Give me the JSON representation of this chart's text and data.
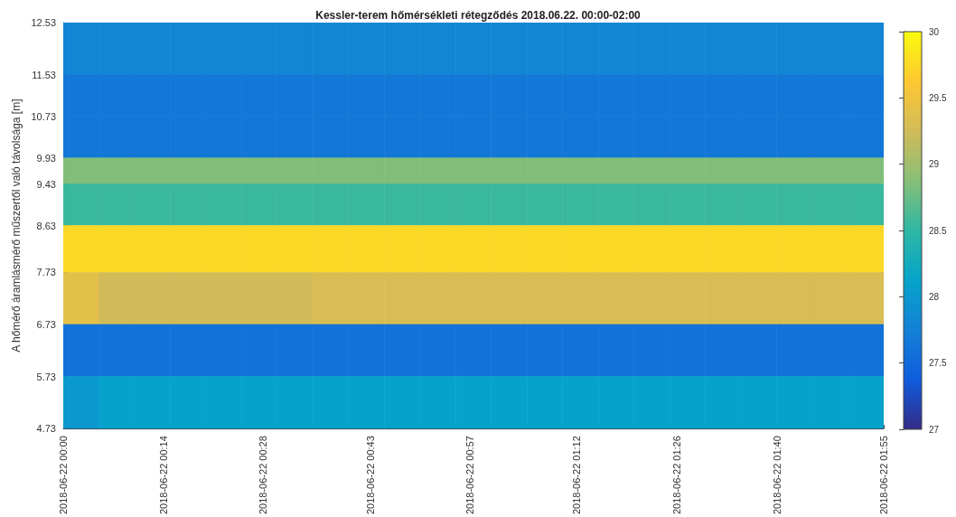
{
  "chart_data": {
    "type": "heatmap",
    "title": "Kessler-terem hőmérsékleti rétegződés 2018.06.22. 00:00-02:00",
    "ylabel": "A hőmérő áramlásmérő műszertől való távolsága [m]",
    "x": [
      "2018-06-22T00:02:30",
      "2018-06-22T00:07:30",
      "2018-06-22T00:12:30",
      "2018-06-22T00:17:30",
      "2018-06-22T00:22:30",
      "2018-06-22T00:27:30",
      "2018-06-22T00:32:30",
      "2018-06-22T00:37:30",
      "2018-06-22T00:42:30",
      "2018-06-22T00:47:30",
      "2018-06-22T00:52:30",
      "2018-06-22T00:57:30",
      "2018-06-22T01:02:30",
      "2018-06-22T01:07:30",
      "2018-06-22T01:12:30",
      "2018-06-22T01:17:30",
      "2018-06-22T01:22:30",
      "2018-06-22T01:27:30",
      "2018-06-22T01:32:30",
      "2018-06-22T01:37:30",
      "2018-06-22T01:42:30",
      "2018-06-22T01:47:30",
      "2018-06-22T01:52:30"
    ],
    "xlim": [
      "2018-06-22T00:00",
      "2018-06-22T01:55"
    ],
    "xticks": [
      {
        "value": "2018-06-22T00:00",
        "label": "2018-06-22 00:00"
      },
      {
        "value": "2018-06-22T00:14",
        "label": "2018-06-22 00:14"
      },
      {
        "value": "2018-06-22T00:28",
        "label": "2018-06-22 00:28"
      },
      {
        "value": "2018-06-22T00:43",
        "label": "2018-06-22 00:43"
      },
      {
        "value": "2018-06-22T00:57",
        "label": "2018-06-22 00:57"
      },
      {
        "value": "2018-06-22T01:12",
        "label": "2018-06-22 01:12"
      },
      {
        "value": "2018-06-22T01:26",
        "label": "2018-06-22 01:26"
      },
      {
        "value": "2018-06-22T01:40",
        "label": "2018-06-22 01:40"
      },
      {
        "value": "2018-06-22T01:55",
        "label": "2018-06-22 01:55"
      }
    ],
    "ylim": [
      4.73,
      12.53
    ],
    "yticks": [
      4.73,
      5.73,
      6.73,
      7.73,
      8.63,
      9.43,
      9.93,
      10.73,
      11.53,
      12.53
    ],
    "cells": [
      [
        27.8,
        27.8,
        27.8,
        27.8,
        27.8,
        27.8,
        27.8,
        27.8,
        27.8,
        27.8,
        27.8,
        27.8,
        27.8,
        27.8,
        27.8,
        27.8,
        27.8,
        27.8,
        27.8,
        27.8,
        27.8,
        27.8,
        27.8
      ],
      [
        27.65,
        27.65,
        27.65,
        27.65,
        27.65,
        27.65,
        27.65,
        27.65,
        27.65,
        27.65,
        27.65,
        27.65,
        27.65,
        27.65,
        27.65,
        27.65,
        27.65,
        27.65,
        27.65,
        27.65,
        27.65,
        27.65,
        27.65
      ],
      [
        27.65,
        27.65,
        27.65,
        27.65,
        27.65,
        27.65,
        27.65,
        27.65,
        27.65,
        27.65,
        27.65,
        27.65,
        27.65,
        27.65,
        27.65,
        27.65,
        27.65,
        27.65,
        27.65,
        27.65,
        27.65,
        27.65,
        27.65
      ],
      [
        28.85,
        28.85,
        28.85,
        28.85,
        28.85,
        28.85,
        28.85,
        28.85,
        28.85,
        28.85,
        28.85,
        28.85,
        28.85,
        28.85,
        28.85,
        28.85,
        28.85,
        28.85,
        28.85,
        28.85,
        28.85,
        28.85,
        28.85
      ],
      [
        28.55,
        28.55,
        28.55,
        28.55,
        28.55,
        28.55,
        28.55,
        28.55,
        28.55,
        28.55,
        28.55,
        28.55,
        28.55,
        28.55,
        28.55,
        28.55,
        28.55,
        28.55,
        28.55,
        28.55,
        28.55,
        28.55,
        28.55
      ],
      [
        29.75,
        29.75,
        29.75,
        29.75,
        29.75,
        29.75,
        29.75,
        29.75,
        29.75,
        29.75,
        29.75,
        29.75,
        29.75,
        29.75,
        29.75,
        29.75,
        29.75,
        29.75,
        29.75,
        29.75,
        29.75,
        29.75,
        29.75
      ],
      [
        29.4,
        29.25,
        29.25,
        29.25,
        29.25,
        29.25,
        29.25,
        29.3,
        29.3,
        29.3,
        29.3,
        29.3,
        29.3,
        29.3,
        29.3,
        29.3,
        29.3,
        29.3,
        29.3,
        29.3,
        29.3,
        29.3,
        29.3
      ],
      [
        27.6,
        27.6,
        27.6,
        27.6,
        27.6,
        27.6,
        27.6,
        27.6,
        27.6,
        27.6,
        27.6,
        27.6,
        27.6,
        27.6,
        27.6,
        27.6,
        27.6,
        27.6,
        27.6,
        27.6,
        27.6,
        27.6,
        27.6
      ],
      [
        28.0,
        28.1,
        28.1,
        28.1,
        28.1,
        28.1,
        28.1,
        28.1,
        28.1,
        28.1,
        28.1,
        28.1,
        28.1,
        28.1,
        28.1,
        28.1,
        28.1,
        28.1,
        28.1,
        28.1,
        28.1,
        28.1,
        28.1
      ]
    ],
    "clim": [
      27,
      30
    ],
    "cticks": [
      27,
      27.5,
      28,
      28.5,
      29,
      29.5,
      30
    ]
  }
}
